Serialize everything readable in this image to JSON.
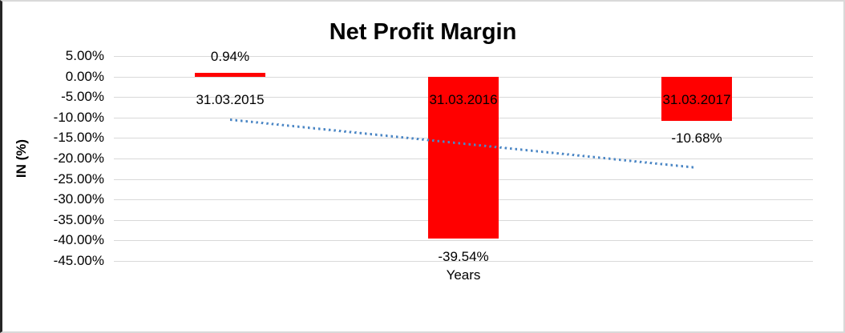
{
  "chart_data": {
    "type": "bar",
    "title": "Net Profit Margin",
    "xlabel": "Years",
    "ylabel": "IN (%)",
    "categories": [
      "31.03.2015",
      "31.03.2016",
      "31.03.2017"
    ],
    "values": [
      0.94,
      -39.54,
      -10.68
    ],
    "data_labels": [
      "0.94%",
      "-39.54%",
      "-10.68%"
    ],
    "ylim": [
      -45,
      5
    ],
    "ytick_step": 5,
    "ytick_labels": [
      "5.00%",
      "0.00%",
      "-5.00%",
      "-10.00%",
      "-15.00%",
      "-20.00%",
      "-25.00%",
      "-30.00%",
      "-35.00%",
      "-40.00%",
      "-45.00%"
    ],
    "grid": true,
    "legend": "none",
    "bar_color": "#ff0000",
    "gridline_color": "#d9d9d9",
    "text_color": "#000000",
    "trendline": {
      "style": "dotted",
      "color": "#4c87c5",
      "start_value": -10.6,
      "end_value": -22.3
    }
  }
}
